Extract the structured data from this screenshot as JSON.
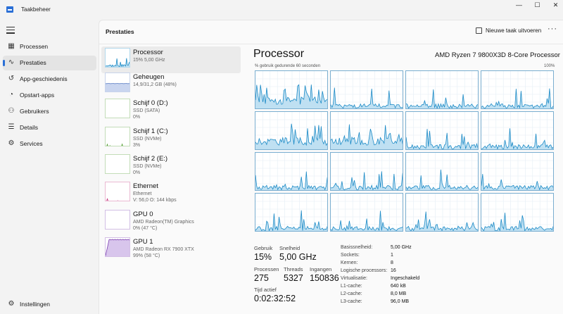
{
  "window": {
    "title": "Taakbeheer",
    "controls": [
      "—",
      "☐",
      "✕"
    ]
  },
  "sidebar": {
    "items": [
      {
        "label": "Processen",
        "icon": "processes-icon",
        "glyph": "▦",
        "active": false
      },
      {
        "label": "Prestaties",
        "icon": "performance-icon",
        "glyph": "∿",
        "active": true
      },
      {
        "label": "App-geschiedenis",
        "icon": "history-icon",
        "glyph": "↺",
        "active": false
      },
      {
        "label": "Opstart-apps",
        "icon": "startup-icon",
        "glyph": "◔",
        "active": false
      },
      {
        "label": "Gebruikers",
        "icon": "users-icon",
        "glyph": "⚇",
        "active": false
      },
      {
        "label": "Details",
        "icon": "details-icon",
        "glyph": "☰",
        "active": false
      },
      {
        "label": "Services",
        "icon": "services-icon",
        "glyph": "⚙",
        "active": false
      }
    ],
    "settings": {
      "label": "Instellingen",
      "icon": "settings-icon",
      "glyph": "⚙"
    }
  },
  "header": {
    "title": "Prestaties",
    "new_task_label": "Nieuwe taak uitvoeren",
    "more": "···"
  },
  "devices": [
    {
      "name": "Processor",
      "sub": [
        "15%  5,00 GHz"
      ],
      "kind": "cpu",
      "color": "#1b8ac6",
      "fill": "#bfe0f2",
      "active": true
    },
    {
      "name": "Geheugen",
      "sub": [
        "14,9/31,2 GB (48%)"
      ],
      "kind": "memory",
      "color": "#5b7ec4",
      "fill": "#c9d5ef",
      "active": false
    },
    {
      "name": "Schijf 0 (D:)",
      "sub": [
        "SSD (SATA)",
        "0%"
      ],
      "kind": "flat",
      "color": "#4c9a2a",
      "fill": "#d5ecc8",
      "active": false
    },
    {
      "name": "Schijf 1 (C:)",
      "sub": [
        "SSD (NVMe)",
        "3%"
      ],
      "kind": "disk",
      "color": "#4c9a2a",
      "fill": "#d5ecc8",
      "active": false
    },
    {
      "name": "Schijf 2 (E:)",
      "sub": [
        "SSD (NVMe)",
        "0%"
      ],
      "kind": "flat",
      "color": "#4c9a2a",
      "fill": "#d5ecc8",
      "active": false
    },
    {
      "name": "Ethernet",
      "sub": [
        "Ethernet",
        "V: 56,0  O: 144 kbps"
      ],
      "kind": "net",
      "color": "#c4317a",
      "fill": "#f2c9dd",
      "active": false
    },
    {
      "name": "GPU 0",
      "sub": [
        "AMD Radeon(TM) Graphics",
        "0% (47 °C)"
      ],
      "kind": "flat",
      "color": "#7b3fb0",
      "fill": "#e0d0ef",
      "active": false
    },
    {
      "name": "GPU 1",
      "sub": [
        "AMD Radeon RX 7900 XTX",
        "99% (58 °C)"
      ],
      "kind": "gpu",
      "color": "#7b3fb0",
      "fill": "#d8c5ec",
      "active": false
    }
  ],
  "main": {
    "title": "Processor",
    "model": "AMD Ryzen 7 9800X3D 8-Core Processor",
    "graph_caption": "% gebruik gedurende 60 seconden",
    "graph_max": "100%",
    "graph_color": "#1b8ac6",
    "graph_fill": "#bfe0f2",
    "cores": 16
  },
  "stats": {
    "usage": {
      "label": "Gebruik",
      "value": "15%"
    },
    "speed": {
      "label": "Snelheid",
      "value": "5,00 GHz"
    },
    "processes": {
      "label": "Processen",
      "value": "275"
    },
    "threads": {
      "label": "Threads",
      "value": "5327"
    },
    "handles": {
      "label": "Ingangen",
      "value": "150836"
    },
    "uptime": {
      "label": "Tijd actief",
      "value": "0:02:32:52"
    }
  },
  "specs": [
    {
      "label": "Basissnelheid:",
      "value": "5,00 GHz"
    },
    {
      "label": "Sockets:",
      "value": "1"
    },
    {
      "label": "Kernen:",
      "value": "8"
    },
    {
      "label": "Logische processors:",
      "value": "16"
    },
    {
      "label": "Virtualisatie:",
      "value": "Ingeschakeld"
    },
    {
      "label": "L1-cache:",
      "value": "640 kB"
    },
    {
      "label": "L2-cache:",
      "value": "8,0 MB"
    },
    {
      "label": "L3-cache:",
      "value": "96,0 MB"
    }
  ]
}
